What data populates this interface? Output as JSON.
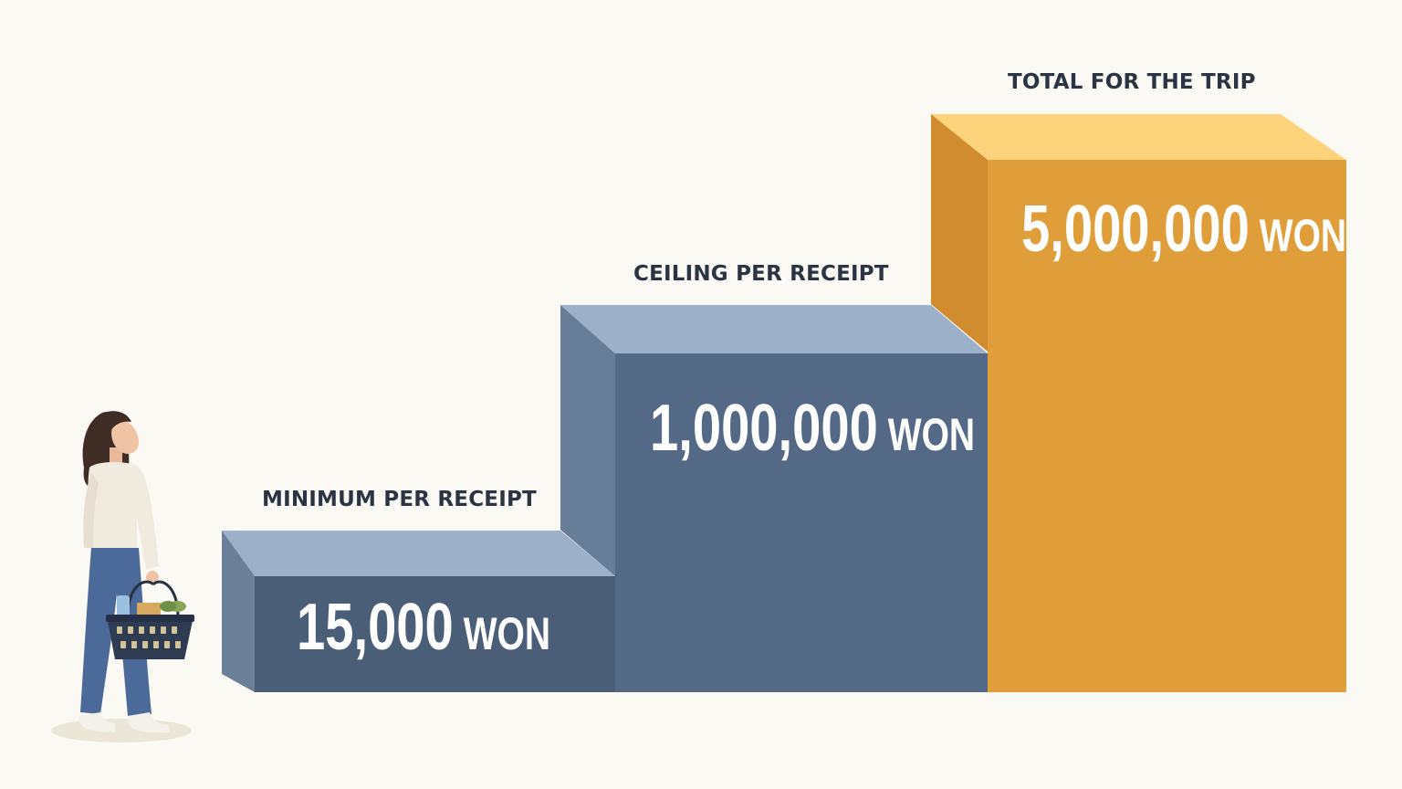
{
  "steps": [
    {
      "label": "MINIMUM PER RECEIPT",
      "amount": "15,000",
      "unit": "WON"
    },
    {
      "label": "CEILING PER RECEIPT",
      "amount": "1,000,000",
      "unit": "WON"
    },
    {
      "label": "TOTAL FOR THE TRIP",
      "amount": "5,000,000",
      "unit": "WON"
    }
  ],
  "colors": {
    "background": "#fbf9f4",
    "step_low_front": "#4b5e78",
    "step_low_top": "#9db0c9",
    "step_low_side": "#6b7f99",
    "step_mid_front": "#546985",
    "step_mid_top": "#9db0c9",
    "step_mid_side": "#687e98",
    "step_high_front": "#e09e3a",
    "step_high_top": "#fdd47c",
    "step_high_side": "#d08c2f",
    "label_text": "#2b3442"
  },
  "icons": {
    "figure": "woman-shopper-icon",
    "basket": "shopping-basket-icon"
  }
}
